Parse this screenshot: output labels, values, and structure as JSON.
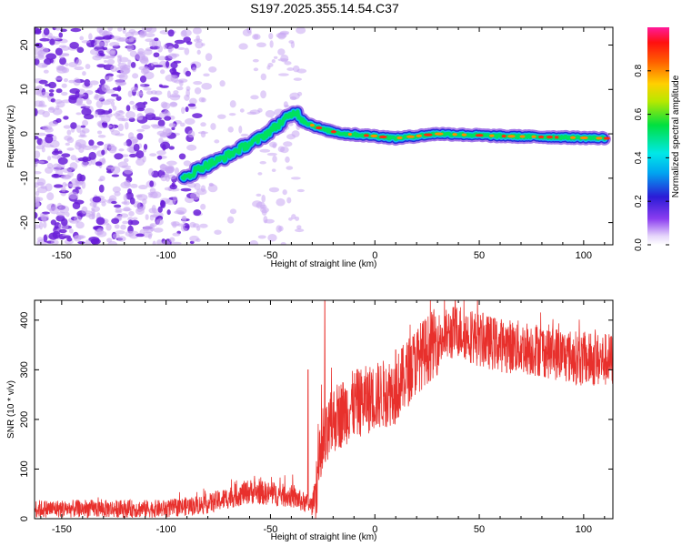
{
  "title": "S197.2025.355.14.54.C37",
  "colors": {
    "snr_line": "#e8302c",
    "frame": "#000000",
    "noise_purple": "#6a1fd8",
    "noise_lavender": "#c9a8f2"
  },
  "chart_data": [
    {
      "type": "heatmap",
      "name": "spectrogram",
      "xlabel": "Height of straight line (km)",
      "ylabel": "Frequency (Hz)",
      "xlim": [
        -163,
        114
      ],
      "ylim": [
        -25,
        24
      ],
      "xticks": [
        -150,
        -100,
        -50,
        0,
        50,
        100
      ],
      "yticks": [
        -20,
        -10,
        0,
        10,
        20
      ],
      "colorbar": {
        "label": "Normalized spectral amplitude",
        "range": [
          0,
          1
        ],
        "ticks": [
          0.0,
          0.2,
          0.4,
          0.6,
          0.8
        ],
        "tick_labels": [
          "0.0",
          "0.2",
          "0.4",
          "0.6",
          "0.8"
        ]
      },
      "signal_track": {
        "x_km": [
          -92,
          -85,
          -75,
          -65,
          -55,
          -45,
          -38,
          -33,
          -25,
          -15,
          0,
          10,
          30,
          60,
          110
        ],
        "freq_hz": [
          -10.5,
          -8,
          -6,
          -3.5,
          -1,
          2.5,
          5,
          2.5,
          1,
          0,
          -0.5,
          -1,
          0,
          -0.5,
          -1
        ]
      },
      "noise_region_km": [
        -163,
        -35
      ]
    },
    {
      "type": "line",
      "name": "snr",
      "xlabel": "Height of straight line (km)",
      "ylabel": "SNR (10 * v/v)",
      "xlim": [
        -163,
        114
      ],
      "ylim": [
        0,
        440
      ],
      "xticks": [
        -150,
        -100,
        -50,
        0,
        50,
        100
      ],
      "yticks": [
        0,
        100,
        200,
        300,
        400
      ],
      "trend": {
        "x_km": [
          -163,
          -100,
          -80,
          -60,
          -40,
          -30,
          -26,
          -20,
          -10,
          0,
          10,
          20,
          30,
          40,
          50,
          60,
          70,
          80,
          90,
          100,
          114
        ],
        "snr": [
          20,
          20,
          30,
          55,
          45,
          25,
          120,
          200,
          230,
          245,
          260,
          320,
          360,
          380,
          360,
          350,
          345,
          340,
          330,
          320,
          320
        ]
      },
      "spikes": [
        {
          "x_km": -24,
          "snr": 440
        },
        {
          "x_km": -32,
          "snr": 300
        },
        {
          "x_km": 10,
          "snr": 340
        }
      ]
    }
  ]
}
